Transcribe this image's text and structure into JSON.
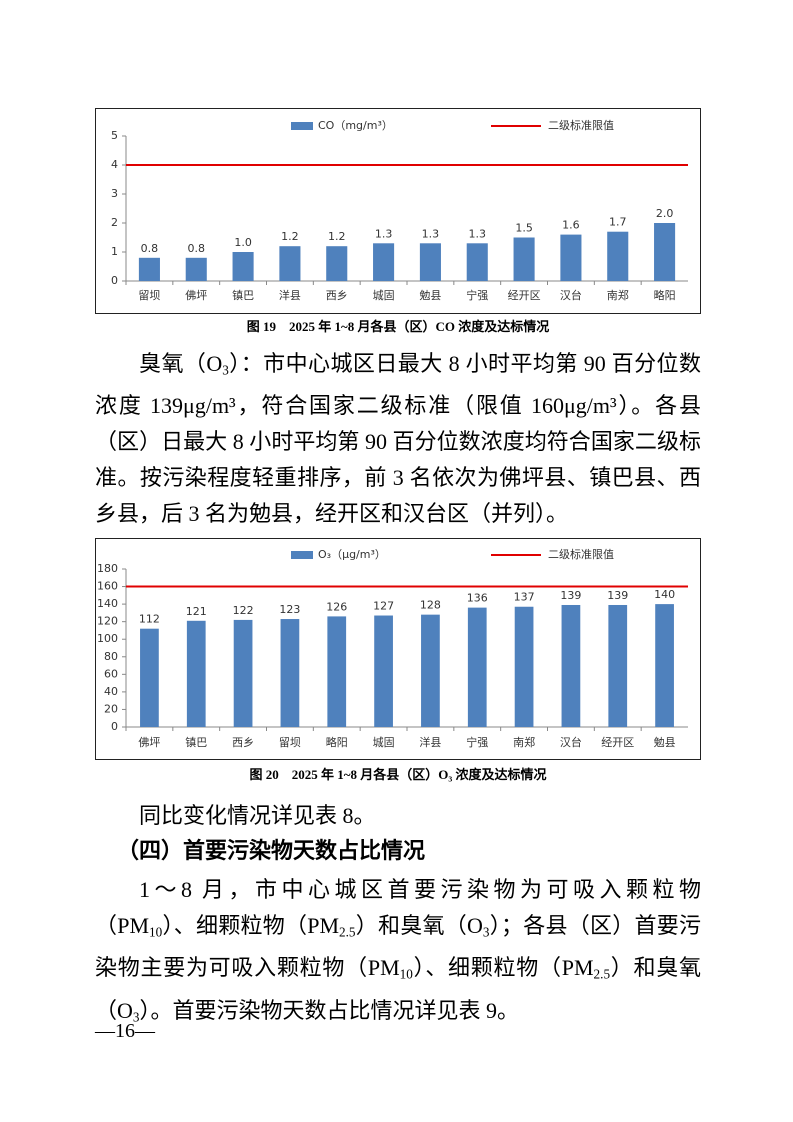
{
  "chart_data": [
    {
      "type": "bar",
      "title": "图 19　2025 年 1~8 月各县（区）CO 浓度及达标情况",
      "categories": [
        "留坝",
        "佛坪",
        "镇巴",
        "洋县",
        "西乡",
        "城固",
        "勉县",
        "宁强",
        "经开区",
        "汉台",
        "南郑",
        "略阳"
      ],
      "series": [
        {
          "name": "CO（mg/m³）",
          "color": "#4f81bd",
          "values": [
            0.8,
            0.8,
            1.0,
            1.2,
            1.2,
            1.3,
            1.3,
            1.3,
            1.5,
            1.6,
            1.7,
            2.0
          ],
          "value_labels": [
            "0.8",
            "0.8",
            "1.0",
            "1.2",
            "1.2",
            "1.3",
            "1.3",
            "1.3",
            "1.5",
            "1.6",
            "1.7",
            "2.0"
          ]
        }
      ],
      "threshold": {
        "name": "二级标准限值",
        "value": 4,
        "color": "#e00000"
      },
      "ylim": [
        0,
        5
      ],
      "yticks": [
        0,
        1,
        2,
        3,
        4,
        5
      ]
    },
    {
      "type": "bar",
      "title": "图 20　2025 年 1~8 月各县（区）O₃ 浓度及达标情况",
      "categories": [
        "佛坪",
        "镇巴",
        "西乡",
        "留坝",
        "略阳",
        "城固",
        "洋县",
        "宁强",
        "南郑",
        "汉台",
        "经开区",
        "勉县"
      ],
      "series": [
        {
          "name": "O₃（μg/m³）",
          "color": "#4f81bd",
          "values": [
            112,
            121,
            122,
            123,
            126,
            127,
            128,
            136,
            137,
            139,
            139,
            140
          ]
        }
      ],
      "threshold": {
        "name": "二级标准限值",
        "value": 160,
        "color": "#e00000"
      },
      "ylim": [
        0,
        180
      ],
      "yticks": [
        0,
        20,
        40,
        60,
        80,
        100,
        120,
        140,
        160,
        180
      ]
    }
  ],
  "document": {
    "paragraph_1": [
      {
        "text": "臭氧（O"
      },
      {
        "text": "3",
        "sub": true
      },
      {
        "text": "）：市中心城区日最大 8 小时平均第 90 百分位数浓度 139μg/m³，符合国家二级标准（限值 160μg/m³）。各县（区）日最大 8 小时平均第 90 百分位数浓度均符合国家二级标准。按污染程度轻重排序，前 3 名依次为佛坪县、镇巴县、西乡县，后 3 名为勉县，经开区和汉台区（并列）。"
      }
    ],
    "paragraph_2": [
      {
        "text": "同比变化情况详见表 8。"
      }
    ],
    "heading": "（四）首要污染物天数占比情况",
    "paragraph_3": [
      {
        "text": "1～8 月，市中心城区首要污染物为可吸入颗粒物（PM"
      },
      {
        "text": "10",
        "sub": true
      },
      {
        "text": "）、细颗粒物（PM"
      },
      {
        "text": "2.5",
        "sub": true
      },
      {
        "text": "）和臭氧（O"
      },
      {
        "text": "3",
        "sub": true
      },
      {
        "text": "）；各县（区）首要污染物主要为可吸入颗粒物（PM"
      },
      {
        "text": "10",
        "sub": true
      },
      {
        "text": "）、细颗粒物（PM"
      },
      {
        "text": "2.5",
        "sub": true
      },
      {
        "text": "）和臭氧（O"
      },
      {
        "text": "3",
        "sub": true
      },
      {
        "text": "）。首要污染物天数占比情况详见表 9。"
      }
    ],
    "page_number": "—16—"
  }
}
